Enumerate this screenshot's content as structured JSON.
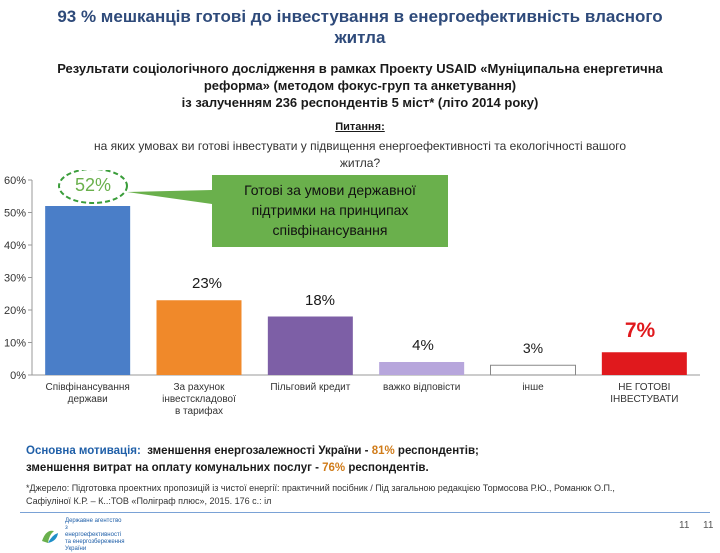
{
  "header": {
    "title": "93 % мешканців готові до інвестування в енергоефективність власного житла",
    "subtitle_lines": [
      "Результати соціологічного дослідження в рамках Проекту USAID «Муніципальна енергетична",
      "реформа» (методом фокус-груп та анкетування)",
      "із залученням 236 респондентів 5 міст* (літо 2014 року)"
    ]
  },
  "question": {
    "label": "Питання:",
    "text_lines": [
      "на яких умовах ви готові інвестувати у підвищення енергоефективності та екологічності вашого",
      "житла?"
    ]
  },
  "chart_data": {
    "type": "bar",
    "categories": [
      "Співфінансування держави",
      "За рахунок інвестскладової в тарифах",
      "Пільговий кредит",
      "важко відповісти",
      "інше",
      "НЕ ГОТОВІ ІНВЕСТУВАТИ"
    ],
    "values": [
      52,
      23,
      18,
      4,
      3,
      7
    ],
    "data_labels": [
      "52%",
      "23%",
      "18%",
      "4%",
      "3%",
      "7%"
    ],
    "colors": [
      "#4a7ec8",
      "#f0892a",
      "#7d5fa6",
      "#b7a6dc",
      "#ffffff",
      "#e0191d"
    ],
    "ylim": [
      0,
      60
    ],
    "yticks": [
      "0%",
      "10%",
      "20%",
      "30%",
      "40%",
      "50%",
      "60%"
    ],
    "callout": {
      "text_lines": [
        "Готові  за умови державної",
        "підтримки на принципах",
        "співфінансування"
      ],
      "color": "#6ab04c"
    }
  },
  "motivation": {
    "label": "Основна мотивація:",
    "line1_text": "зменшення енергозалежності України - ",
    "line1_value": "81%",
    "line1_tail": " респондентів;",
    "line2_text": "зменшення витрат на оплату комунальних послуг - ",
    "line2_value": "76%",
    "line2_tail": " респондентів."
  },
  "source": {
    "lines": [
      "*Джерело: Підготовка проектних пропозицій із чистої енергії: практичний посібник  / Під загальною редакцією Тормосова Р.Ю., Романюк О.П.,",
      "Сафіуліної К.Р. – К..:ТОВ «Поліграф плюс», 2015. 176 с.: іл"
    ]
  },
  "footer": {
    "logo_text": "Державне агентство з енергоефективності та енергозбереження України",
    "page_number": "11",
    "page_number_2": "11"
  }
}
